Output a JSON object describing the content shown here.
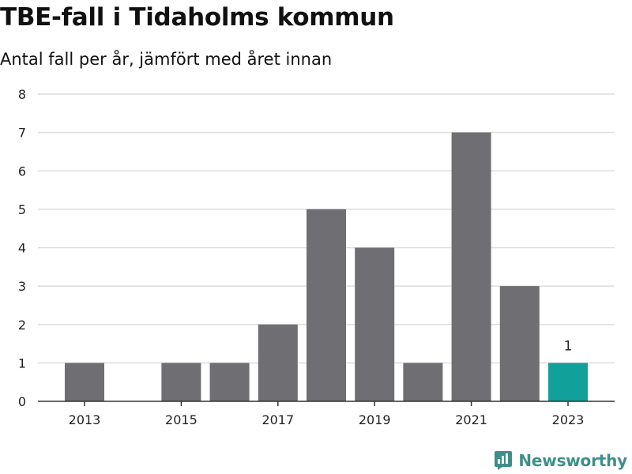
{
  "chart_data": {
    "type": "bar",
    "title": "TBE-fall i Tidaholms kommun",
    "subtitle": "Antal fall per år, jämfört med året innan",
    "categories": [
      "2013",
      "2014",
      "2015",
      "2016",
      "2017",
      "2018",
      "2019",
      "2020",
      "2021",
      "2022",
      "2023"
    ],
    "values": [
      1,
      0,
      1,
      1,
      2,
      5,
      4,
      1,
      7,
      3,
      1
    ],
    "x_tick_labels": [
      "2013",
      "2015",
      "2017",
      "2019",
      "2021",
      "2023"
    ],
    "y_ticks": [
      "0",
      "1",
      "2",
      "3",
      "4",
      "5",
      "6",
      "7",
      "8"
    ],
    "ylim": [
      0,
      8
    ],
    "grid": true,
    "highlight": {
      "category": "2023",
      "label": "1"
    },
    "colors": {
      "bar": "#6e6e73",
      "highlight": "#12a19a",
      "grid": "#dddddd",
      "axis": "#333333"
    }
  },
  "brand": {
    "name": "Newsworthy",
    "icon": "newsworthy-logo-icon",
    "color": "#3e8f89"
  }
}
